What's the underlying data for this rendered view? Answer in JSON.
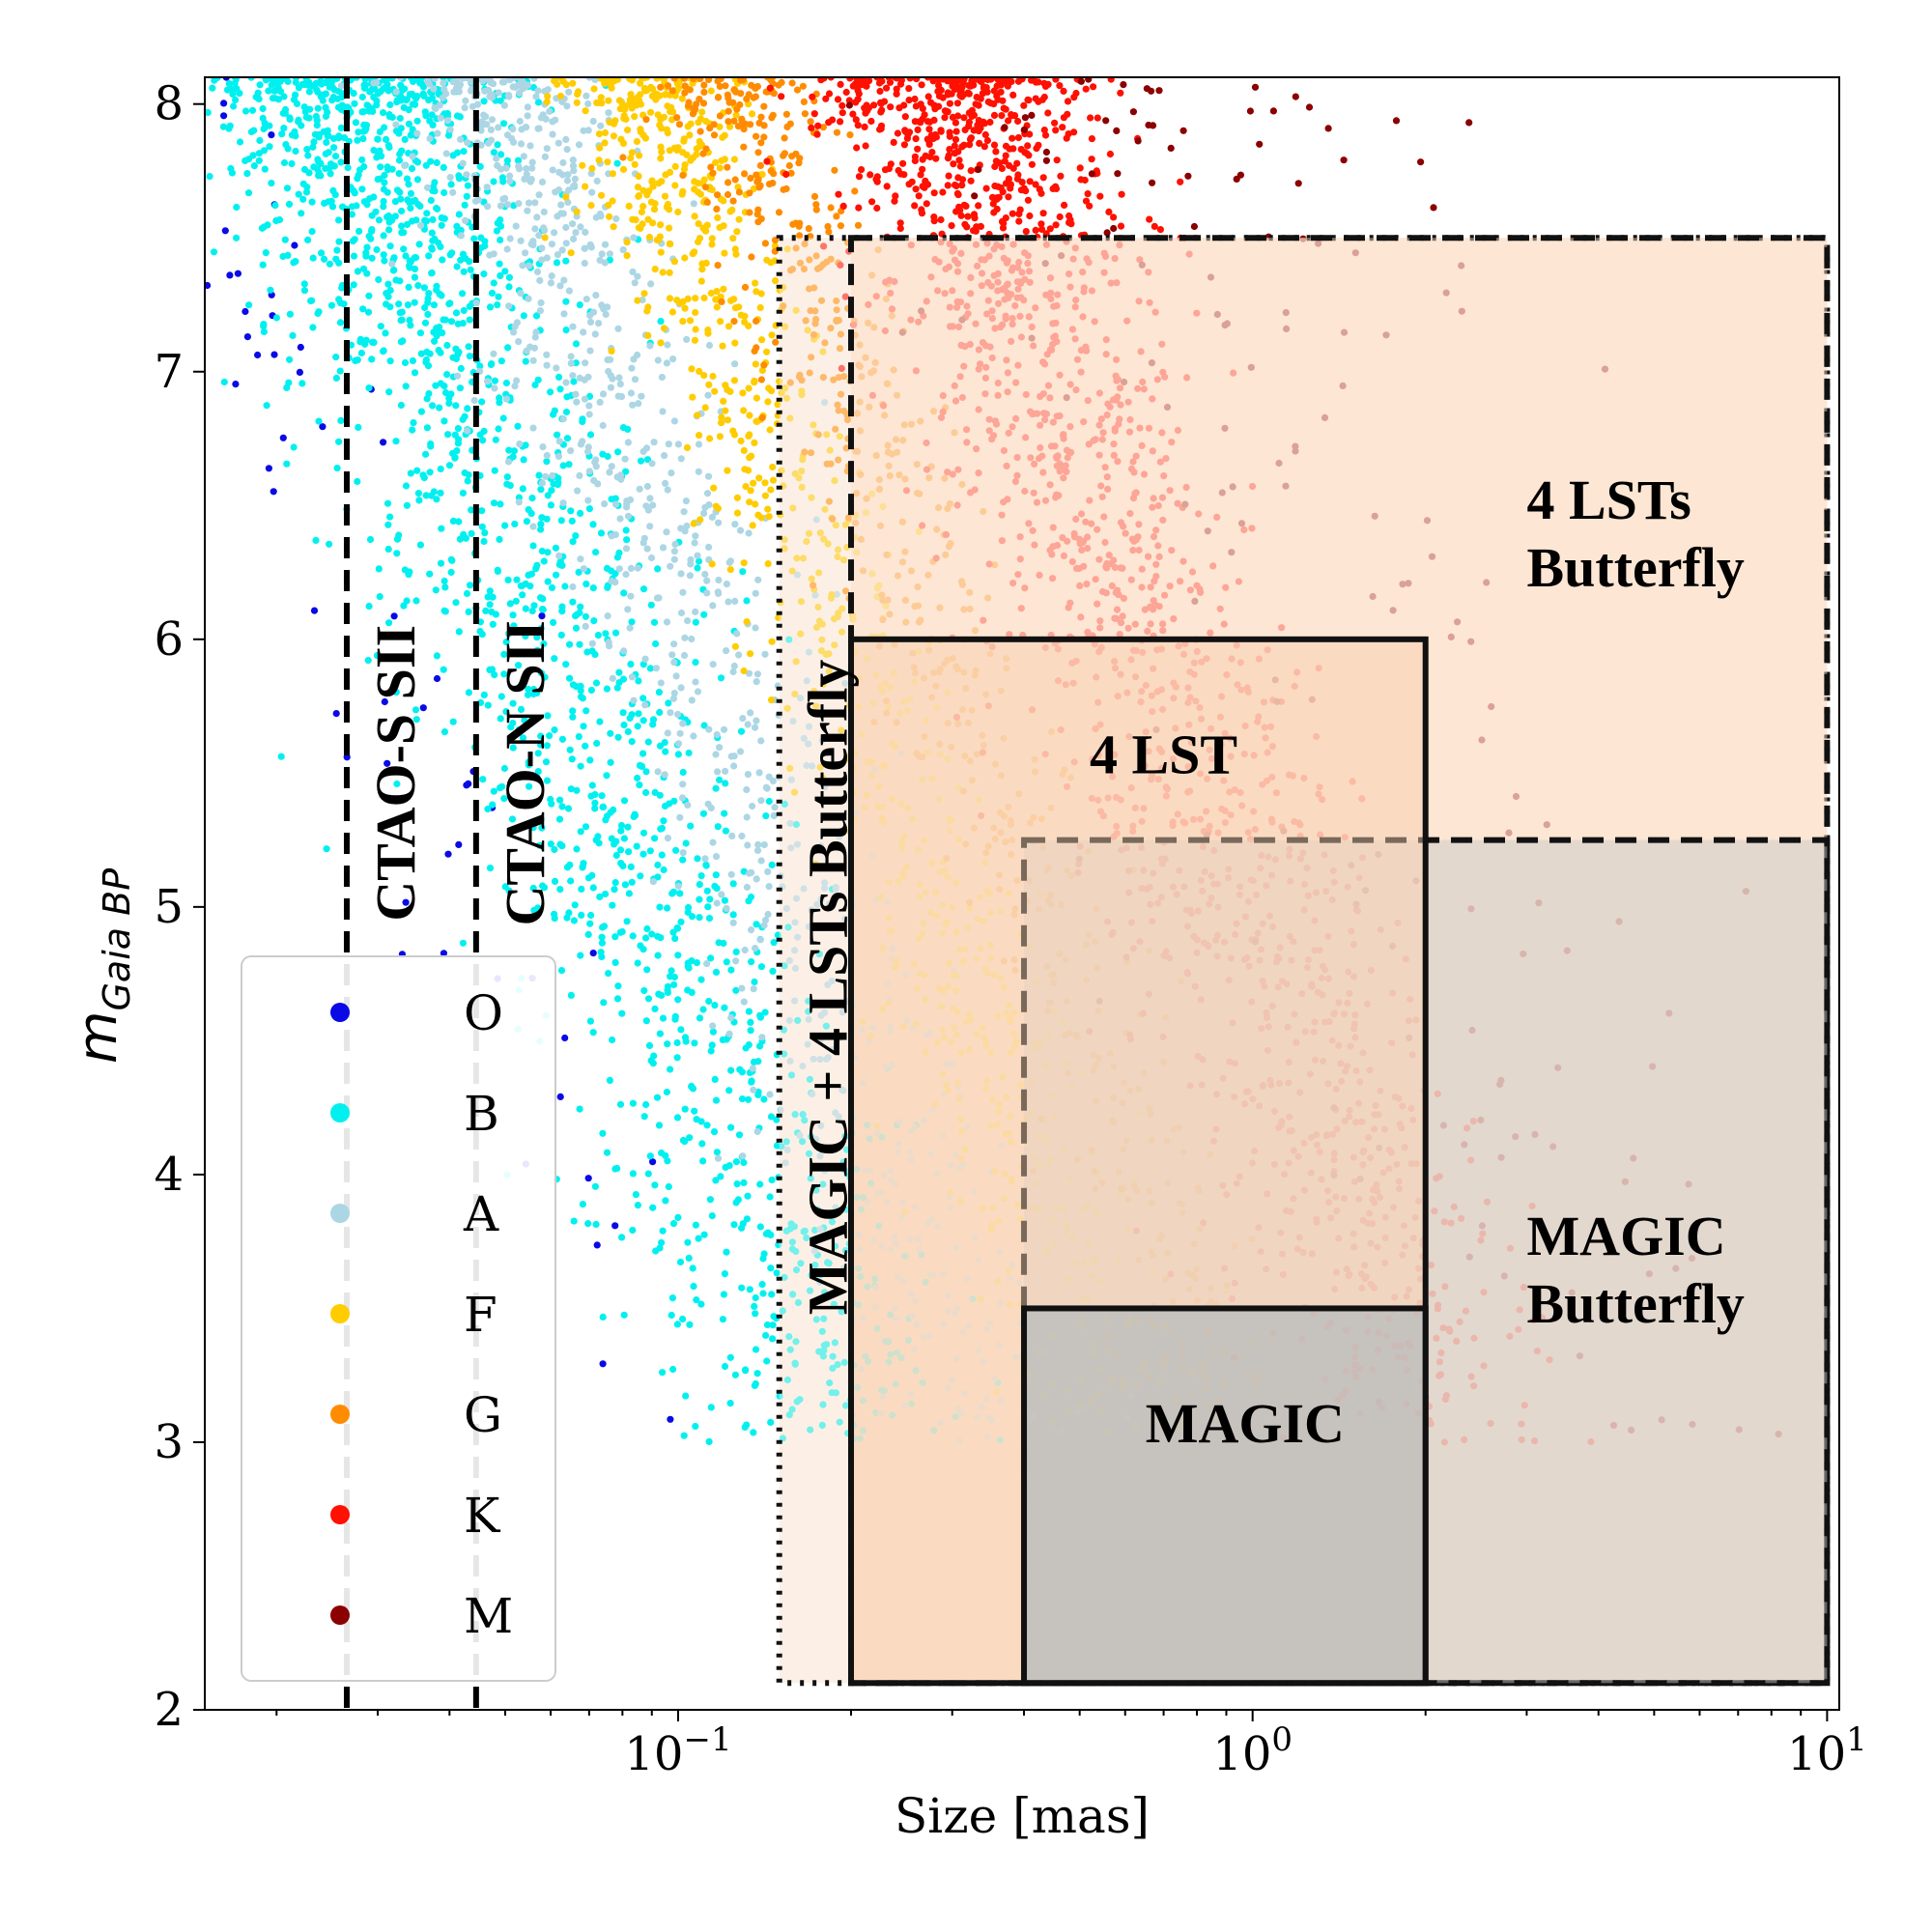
{
  "chart_data": {
    "type": "scatter",
    "xlabel": "Size [mas]",
    "ylabel_main": "m",
    "ylabel_sub": "Gaia BP",
    "x_scale": "log",
    "xlim": [
      0.015,
      10.5
    ],
    "ylim": [
      2,
      8.1
    ],
    "x_major_ticks": [
      {
        "value": 0.1,
        "base": "10",
        "exp": "−1"
      },
      {
        "value": 1,
        "base": "10",
        "exp": "0"
      },
      {
        "value": 10,
        "base": "10",
        "exp": "1"
      }
    ],
    "y_ticks": [
      2,
      3,
      4,
      5,
      6,
      7,
      8
    ],
    "vertical_lines": [
      {
        "x": 0.0265,
        "label": "CTAO-S SII"
      },
      {
        "x": 0.0445,
        "label": "CTAO-N SII"
      }
    ],
    "regions": [
      {
        "name": "MAGIC + 4 LSTs Butterfly",
        "x": [
          0.15,
          10
        ],
        "y": [
          2.1,
          7.5
        ],
        "fill": "#fcf0e6",
        "style": "dotted"
      },
      {
        "name": "4 LSTs Butterfly",
        "x": [
          0.2,
          10
        ],
        "y": [
          2.1,
          7.5
        ],
        "fill": "#fde3ce",
        "style": "dashed",
        "label": [
          "4 LSTs",
          "Butterfly"
        ]
      },
      {
        "name": "MAGIC Butterfly",
        "x": [
          0.4,
          10
        ],
        "y": [
          2.1,
          5.25
        ],
        "fill": "#d3cfc9",
        "style": "dashed",
        "label": [
          "MAGIC",
          "Butterfly"
        ]
      },
      {
        "name": "4 LST",
        "x": [
          0.2,
          2
        ],
        "y": [
          2.1,
          6.0
        ],
        "fill": "#f8d4b6",
        "style": "solid",
        "label": [
          "4 LST"
        ]
      },
      {
        "name": "MAGIC",
        "x": [
          0.4,
          2
        ],
        "y": [
          2.1,
          3.5
        ],
        "fill": "#9eb0ba",
        "style": "solid",
        "label": [
          "MAGIC"
        ]
      }
    ],
    "vertical_region_label": "MAGIC + 4 LSTs Butterfly",
    "legend_position": "lower-left",
    "series": [
      {
        "name": "O",
        "color": "#0a0ae6"
      },
      {
        "name": "B",
        "color": "#00f0f0"
      },
      {
        "name": "A",
        "color": "#acd6e4"
      },
      {
        "name": "F",
        "color": "#ffcc00"
      },
      {
        "name": "G",
        "color": "#ff8c00"
      },
      {
        "name": "K",
        "color": "#ff1000"
      },
      {
        "name": "M",
        "color": "#8b0000"
      }
    ],
    "series_trends": [
      {
        "name": "O",
        "log10_x_at_mag_5": -1.35,
        "slope": -0.17,
        "spread": 0.1,
        "count": 70
      },
      {
        "name": "B",
        "log10_x_at_mag_5": -1.05,
        "slope": -0.17,
        "spread": 0.13,
        "count": 1900
      },
      {
        "name": "A",
        "log10_x_at_mag_5": -0.8,
        "slope": -0.17,
        "spread": 0.1,
        "count": 900
      },
      {
        "name": "F",
        "log10_x_at_mag_5": -0.55,
        "slope": -0.17,
        "spread": 0.08,
        "count": 900
      },
      {
        "name": "G",
        "log10_x_at_mag_5": -0.38,
        "slope": -0.17,
        "spread": 0.07,
        "count": 600
      },
      {
        "name": "K",
        "log10_x_at_mag_5": -0.02,
        "slope": -0.17,
        "spread": 0.12,
        "count": 1700
      },
      {
        "name": "M",
        "log10_x_at_mag_5": 0.35,
        "slope": -0.17,
        "spread": 0.22,
        "count": 160
      }
    ]
  }
}
